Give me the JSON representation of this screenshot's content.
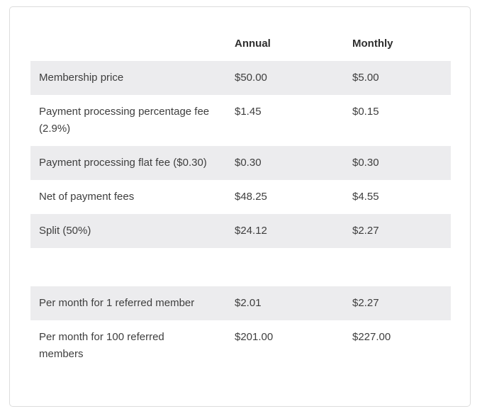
{
  "chart_data": {
    "type": "table",
    "title": "",
    "columns": [
      "Annual",
      "Monthly"
    ],
    "rows": [
      {
        "label": "Membership price",
        "annual": "$50.00",
        "monthly": "$5.00"
      },
      {
        "label": "Payment processing percentage fee\n(2.9%)",
        "annual": "$1.45",
        "monthly": "$0.15"
      },
      {
        "label": "Payment processing flat fee ($0.30)",
        "annual": "$0.30",
        "monthly": "$0.30"
      },
      {
        "label": "Net of payment fees",
        "annual": "$48.25",
        "monthly": "$4.55"
      },
      {
        "label": "Split (50%)",
        "annual": "$24.12",
        "monthly": "$2.27"
      },
      {
        "label": "",
        "annual": "",
        "monthly": ""
      },
      {
        "label": "Per month for 1 referred member",
        "annual": "$2.01",
        "monthly": "$2.27"
      },
      {
        "label": "Per month for 100 referred\nmembers",
        "annual": "$201.00",
        "monthly": "$227.00"
      }
    ],
    "layout": {
      "striped": true,
      "legend": "none",
      "grid": "off"
    }
  },
  "colors": {
    "stripe": "#ececee",
    "card_border": "#dcdcdc",
    "body_text": "#3e3e3e",
    "header_text": "#2f2f2f",
    "background": "#ffffff"
  }
}
